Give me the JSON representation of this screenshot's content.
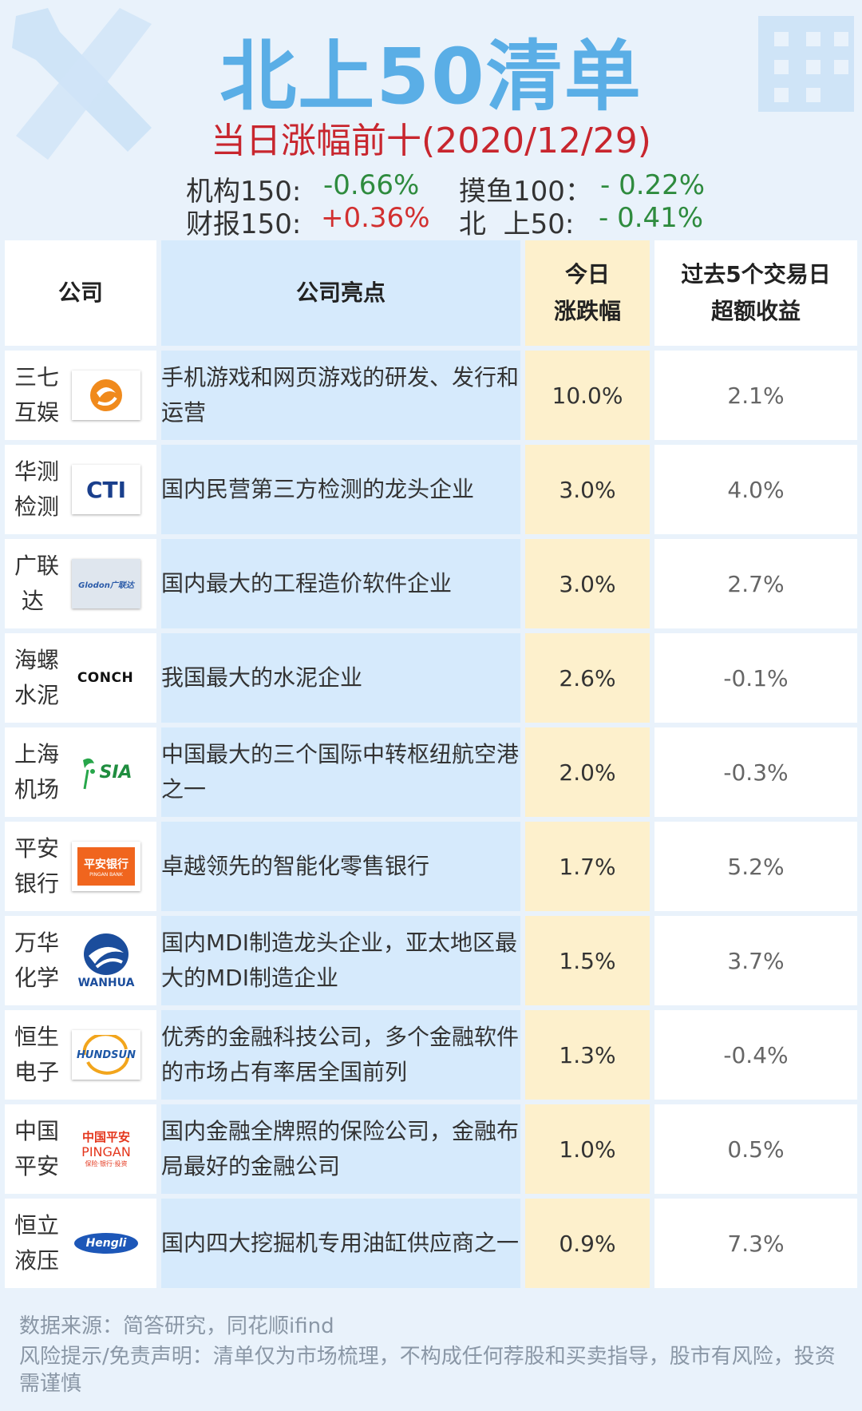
{
  "title": "北上50清单",
  "subtitle": "当日涨幅前十(2020/12/29)",
  "indices": [
    {
      "label": "机构150:",
      "value": "-0.66%"
    },
    {
      "label": "摸鱼100：",
      "value": "- 0.22%"
    },
    {
      "label": "财报150:",
      "value": "+0.36%"
    },
    {
      "label": "北  上50:",
      "value": "- 0.41%"
    }
  ],
  "colors": {
    "title": "#5aaee6",
    "subtitle": "#c8262e",
    "negative": "#2e8b3e",
    "positive": "#d23030"
  },
  "table": {
    "headers": {
      "company": "公司",
      "highlight": "公司亮点",
      "today_1": "今日",
      "today_2": "涨跌幅",
      "past_1": "过去5个交易日",
      "past_2": "超额收益"
    },
    "rows": [
      {
        "name1": "三七",
        "name2": "互娱",
        "logo_icon": "37-interactive-logo",
        "highlight": "手机游戏和网页游戏的研发、发行和运营",
        "today": "10.0%",
        "excess": "2.1%"
      },
      {
        "name1": "华测",
        "name2": "检测",
        "logo_icon": "cti-logo",
        "logo_text": "CTI",
        "highlight": "国内民营第三方检测的龙头企业",
        "today": "3.0%",
        "excess": "4.0%"
      },
      {
        "name1": "广联",
        "name2": "达",
        "logo_icon": "glodon-logo",
        "logo_text": "Glodon广联达",
        "highlight": "国内最大的工程造价软件企业",
        "today": "3.0%",
        "excess": "2.7%"
      },
      {
        "name1": "海螺",
        "name2": "水泥",
        "logo_icon": "conch-logo",
        "logo_text": "CONCH",
        "highlight": "我国最大的水泥企业",
        "today": "2.6%",
        "excess": "-0.1%"
      },
      {
        "name1": "上海",
        "name2": "机场",
        "logo_icon": "sia-logo",
        "logo_text": "SIA",
        "highlight": "中国最大的三个国际中转枢纽航空港之一",
        "today": "2.0%",
        "excess": "-0.3%"
      },
      {
        "name1": "平安",
        "name2": "银行",
        "logo_icon": "pingan-bank-logo",
        "logo_text": "平安银行",
        "logo_text2": "PINGAN BANK",
        "highlight": "卓越领先的智能化零售银行",
        "today": "1.7%",
        "excess": "5.2%"
      },
      {
        "name1": "万华",
        "name2": "化学",
        "logo_icon": "wanhua-logo",
        "logo_text": "WANHUA",
        "highlight": "国内MDI制造龙头企业，亚太地区最大的MDI制造企业",
        "today": "1.5%",
        "excess": "3.7%"
      },
      {
        "name1": "恒生",
        "name2": "电子",
        "logo_icon": "hundsun-logo",
        "logo_text": "HUNDSUN",
        "highlight": "优秀的金融科技公司，多个金融软件的市场占有率居全国前列",
        "today": "1.3%",
        "excess": "-0.4%"
      },
      {
        "name1": "中国",
        "name2": "平安",
        "logo_icon": "pingan-logo",
        "logo_text": "中国平安",
        "logo_text2": "PINGAN",
        "logo_text3": "保险·银行·投资",
        "highlight": "国内金融全牌照的保险公司，金融布局最好的金融公司",
        "today": "1.0%",
        "excess": "0.5%"
      },
      {
        "name1": "恒立",
        "name2": "液压",
        "logo_icon": "hengli-logo",
        "logo_text": "Hengli",
        "highlight": "国内四大挖掘机专用油缸供应商之一",
        "today": "0.9%",
        "excess": "7.3%"
      }
    ]
  },
  "footer": {
    "source": "数据来源：简答研究，同花顺ifind",
    "risk": "风险提示/免责声明：清单仅为市场梳理，不构成任何荐股和买卖指导，股市有风险，投资需谨慎"
  }
}
